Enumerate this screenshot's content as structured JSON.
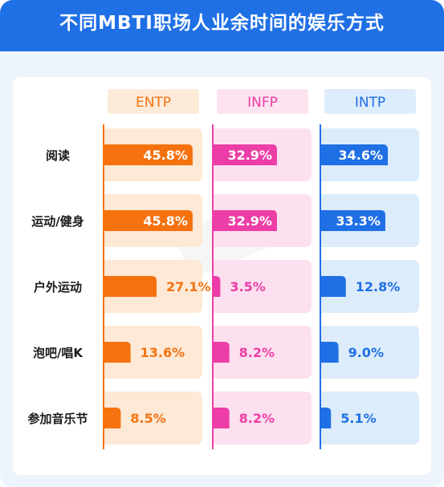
{
  "header": {
    "title": "不同MBTI职场人业余时间的娱乐方式"
  },
  "colors": {
    "header_bg": "#1f6fe5",
    "ENTP": {
      "bar": "#f5720f",
      "light": "#fde9d6",
      "label_bg": "#fdebd9",
      "text": "#f5720f"
    },
    "INFP": {
      "bar": "#ec3ea6",
      "light": "#fde0ef",
      "label_bg": "#fde3f0",
      "text": "#ec3ea6"
    },
    "INTP": {
      "bar": "#1f6fe5",
      "light": "#dcecfb",
      "label_bg": "#deedfb",
      "text": "#1f6fe5"
    }
  },
  "chart_data": {
    "type": "bar",
    "title": "不同MBTI职场人业余时间的娱乐方式",
    "unit": "%",
    "categories": [
      "阅读",
      "运动/健身",
      "户外运动",
      "泡吧/唱K",
      "参加音乐节"
    ],
    "series": [
      {
        "name": "ENTP",
        "values": [
          45.8,
          45.8,
          27.1,
          13.6,
          8.5
        ],
        "labels": [
          "45.8%",
          "45.8%",
          "27.1%",
          "13.6%",
          "8.5%"
        ]
      },
      {
        "name": "INFP",
        "values": [
          32.9,
          32.9,
          3.5,
          8.2,
          8.2
        ],
        "labels": [
          "32.9%",
          "32.9%",
          "3.5%",
          "8.2%",
          "8.2%"
        ]
      },
      {
        "name": "INTP",
        "values": [
          34.6,
          33.3,
          12.8,
          9.0,
          5.1
        ],
        "labels": [
          "34.6%",
          "33.3%",
          "12.8%",
          "9.0%",
          "5.1%"
        ]
      }
    ]
  }
}
